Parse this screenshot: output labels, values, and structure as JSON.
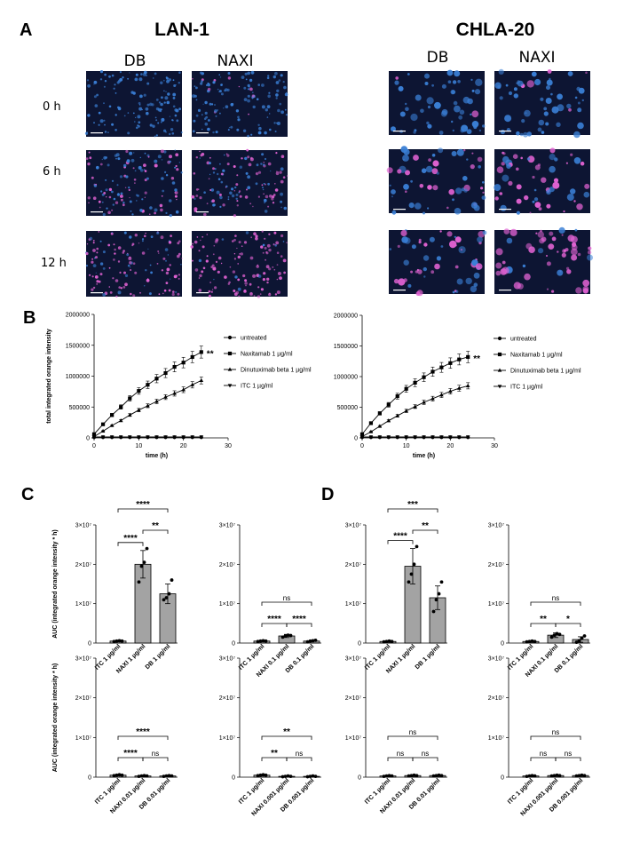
{
  "panels": {
    "A": "A",
    "B": "B",
    "C": "C",
    "D": "D"
  },
  "cell_lines": [
    "LAN-1",
    "CHLA-20"
  ],
  "conditions": [
    "DB",
    "NAXI"
  ],
  "timepoints": [
    "0 h",
    "6 h",
    "12 h"
  ],
  "colors": {
    "bar_fill": "#a3a3a3",
    "line": "#000000",
    "micro_bg": "#0d1533",
    "cell_blue": "#3a7fd6",
    "cell_pink": "#e062d2"
  },
  "chart_data": [
    {
      "id": "B-LAN-1",
      "type": "line",
      "xlabel": "time (h)",
      "ylabel": "total integrated orange intensity",
      "xlim": [
        0,
        30
      ],
      "ylim": [
        0,
        2000000
      ],
      "xticks": [
        "0",
        "10",
        "20",
        "30"
      ],
      "yticks": [
        "0",
        "500000",
        "1000000",
        "1500000",
        "2000000"
      ],
      "annotation": "**",
      "series": [
        {
          "name": "untreated",
          "marker": "circle",
          "x": [
            0,
            2,
            4,
            6,
            8,
            10,
            12,
            14,
            16,
            18,
            20,
            22,
            24
          ],
          "y": [
            10000,
            10000,
            10000,
            10000,
            10000,
            10000,
            10000,
            10000,
            10000,
            10000,
            10000,
            10000,
            10000
          ]
        },
        {
          "name": "Naxitamab 1 µg/ml",
          "marker": "square",
          "x": [
            0,
            2,
            4,
            6,
            8,
            10,
            12,
            14,
            16,
            18,
            20,
            22,
            24
          ],
          "y": [
            60000,
            220000,
            370000,
            500000,
            640000,
            760000,
            860000,
            960000,
            1050000,
            1150000,
            1220000,
            1310000,
            1390000
          ]
        },
        {
          "name": "Dinutuximab beta 1 µg/ml",
          "marker": "triangle-up",
          "x": [
            0,
            2,
            4,
            6,
            8,
            10,
            12,
            14,
            16,
            18,
            20,
            22,
            24
          ],
          "y": [
            20000,
            110000,
            200000,
            280000,
            370000,
            450000,
            520000,
            590000,
            660000,
            720000,
            780000,
            860000,
            930000
          ]
        },
        {
          "name": "ITC 1 µg/ml",
          "marker": "triangle-down",
          "x": [
            0,
            2,
            4,
            6,
            8,
            10,
            12,
            14,
            16,
            18,
            20,
            22,
            24
          ],
          "y": [
            15000,
            15000,
            15000,
            15000,
            15000,
            15000,
            15000,
            15000,
            15000,
            15000,
            15000,
            15000,
            15000
          ]
        }
      ]
    },
    {
      "id": "B-CHLA-20",
      "type": "line",
      "xlabel": "time (h)",
      "ylabel": "",
      "xlim": [
        0,
        30
      ],
      "ylim": [
        0,
        2000000
      ],
      "xticks": [
        "0",
        "10",
        "20",
        "30"
      ],
      "yticks": [
        "0",
        "500000",
        "1000000",
        "1500000",
        "2000000"
      ],
      "annotation": "**",
      "series": [
        {
          "name": "untreated",
          "marker": "circle",
          "x": [
            0,
            2,
            4,
            6,
            8,
            10,
            12,
            14,
            16,
            18,
            20,
            22,
            24
          ],
          "y": [
            10000,
            10000,
            10000,
            10000,
            10000,
            10000,
            10000,
            10000,
            10000,
            10000,
            10000,
            10000,
            10000
          ]
        },
        {
          "name": "Naxitamab 1 µg/ml",
          "marker": "square",
          "x": [
            0,
            2,
            4,
            6,
            8,
            10,
            12,
            14,
            16,
            18,
            20,
            22,
            24
          ],
          "y": [
            60000,
            240000,
            400000,
            540000,
            680000,
            800000,
            900000,
            990000,
            1080000,
            1150000,
            1220000,
            1280000,
            1320000
          ]
        },
        {
          "name": "Dinutuximab beta 1 µg/ml",
          "marker": "triangle-up",
          "x": [
            0,
            2,
            4,
            6,
            8,
            10,
            12,
            14,
            16,
            18,
            20,
            22,
            24
          ],
          "y": [
            20000,
            100000,
            190000,
            280000,
            360000,
            440000,
            510000,
            580000,
            640000,
            700000,
            760000,
            810000,
            850000
          ]
        },
        {
          "name": "ITC 1 µg/ml",
          "marker": "triangle-down",
          "x": [
            0,
            2,
            4,
            6,
            8,
            10,
            12,
            14,
            16,
            18,
            20,
            22,
            24
          ],
          "y": [
            15000,
            15000,
            15000,
            15000,
            15000,
            15000,
            15000,
            15000,
            15000,
            15000,
            15000,
            15000,
            15000
          ]
        }
      ]
    },
    {
      "id": "C1",
      "type": "bar",
      "ylabel": "AUC (integrated orange intensity * h)",
      "yticks": [
        "3×10⁷",
        "2×10⁷",
        "1×10⁷",
        "0"
      ],
      "ylim": [
        0,
        30000000
      ],
      "categories": [
        "ITC 1 µg/ml",
        "NAXI 1 µg/ml",
        "DB 1 µg/ml"
      ],
      "values": [
        500000,
        20000000,
        12500000
      ],
      "errors": [
        200000,
        3500000,
        2500000
      ],
      "points": [
        [
          400000,
          500000,
          600000,
          500000
        ],
        [
          15500000,
          19500000,
          20500000,
          24000000
        ],
        [
          11000000,
          11500000,
          12500000,
          16000000
        ]
      ],
      "brackets": [
        {
          "from": 0,
          "to": 1,
          "label": "****"
        },
        {
          "from": 1,
          "to": 2,
          "label": "**"
        },
        {
          "from": 0,
          "to": 2,
          "label": "****"
        }
      ]
    },
    {
      "id": "C2",
      "type": "bar",
      "ylabel": "",
      "yticks": [
        "3×10⁷",
        "2×10⁷",
        "1×10⁷",
        "0"
      ],
      "ylim": [
        0,
        30000000
      ],
      "categories": [
        "ITC 1 µg/ml",
        "NAXI 0.1 µg/ml",
        "DB 0.1 µg/ml"
      ],
      "values": [
        500000,
        1800000,
        500000
      ],
      "errors": [
        200000,
        400000,
        200000
      ],
      "points": [
        [
          400000,
          500000,
          600000,
          500000
        ],
        [
          1500000,
          1800000,
          2000000,
          1900000
        ],
        [
          300000,
          500000,
          600000,
          700000
        ]
      ],
      "brackets": [
        {
          "from": 0,
          "to": 1,
          "label": "****"
        },
        {
          "from": 1,
          "to": 2,
          "label": "****"
        },
        {
          "from": 0,
          "to": 2,
          "label": "ns"
        }
      ]
    },
    {
      "id": "C3",
      "type": "bar",
      "ylabel": "AUC (integrated orange intensity * h)",
      "yticks": [
        "3×10⁷",
        "2×10⁷",
        "1×10⁷",
        "0"
      ],
      "ylim": [
        0,
        30000000
      ],
      "categories": [
        "ITC 1 µg/ml",
        "NAXI 0.01 µg/ml",
        "DB 0.01 µg/ml"
      ],
      "values": [
        500000,
        300000,
        300000
      ],
      "errors": [
        200000,
        150000,
        150000
      ],
      "points": [
        [
          400000,
          500000,
          600000,
          500000
        ],
        [
          200000,
          300000,
          400000,
          300000
        ],
        [
          200000,
          300000,
          400000,
          300000
        ]
      ],
      "brackets": [
        {
          "from": 0,
          "to": 1,
          "label": "****"
        },
        {
          "from": 1,
          "to": 2,
          "label": "ns"
        },
        {
          "from": 0,
          "to": 2,
          "label": "****"
        }
      ]
    },
    {
      "id": "C4",
      "type": "bar",
      "ylabel": "",
      "yticks": [
        "3×10⁷",
        "2×10⁷",
        "1×10⁷",
        "0"
      ],
      "ylim": [
        0,
        30000000
      ],
      "categories": [
        "ITC 1 µg/ml",
        "NAXI 0.001 µg/ml",
        "DB 0.001 µg/ml"
      ],
      "values": [
        500000,
        200000,
        200000
      ],
      "errors": [
        200000,
        100000,
        100000
      ],
      "points": [
        [
          400000,
          500000,
          600000,
          500000
        ],
        [
          100000,
          200000,
          300000,
          200000
        ],
        [
          100000,
          200000,
          300000,
          200000
        ]
      ],
      "brackets": [
        {
          "from": 0,
          "to": 1,
          "label": "**"
        },
        {
          "from": 1,
          "to": 2,
          "label": "ns"
        },
        {
          "from": 0,
          "to": 2,
          "label": "**"
        }
      ]
    },
    {
      "id": "D1",
      "type": "bar",
      "ylabel": "",
      "yticks": [
        "3×10⁷",
        "2×10⁷",
        "1×10⁷",
        "0"
      ],
      "ylim": [
        0,
        30000000
      ],
      "categories": [
        "ITC 1 µg/ml",
        "NAXI 1 µg/ml",
        "DB 1 µg/ml"
      ],
      "values": [
        400000,
        19500000,
        11500000
      ],
      "errors": [
        150000,
        4500000,
        3000000
      ],
      "points": [
        [
          300000,
          400000,
          500000,
          400000
        ],
        [
          15500000,
          17500000,
          20000000,
          24500000
        ],
        [
          8000000,
          11000000,
          12500000,
          15500000
        ]
      ],
      "brackets": [
        {
          "from": 0,
          "to": 1,
          "label": "****"
        },
        {
          "from": 1,
          "to": 2,
          "label": "**"
        },
        {
          "from": 0,
          "to": 2,
          "label": "***"
        }
      ]
    },
    {
      "id": "D2",
      "type": "bar",
      "ylabel": "",
      "yticks": [
        "3×10⁷",
        "2×10⁷",
        "1×10⁷",
        "0"
      ],
      "ylim": [
        0,
        30000000
      ],
      "categories": [
        "ITC 1 µg/ml",
        "NAXI 0.1 µg/ml",
        "DB 0.1 µg/ml"
      ],
      "values": [
        400000,
        2000000,
        900000
      ],
      "errors": [
        150000,
        600000,
        700000
      ],
      "points": [
        [
          300000,
          400000,
          500000,
          400000
        ],
        [
          1500000,
          2000000,
          2400000,
          2200000
        ],
        [
          200000,
          600000,
          1200000,
          1800000
        ]
      ],
      "brackets": [
        {
          "from": 0,
          "to": 1,
          "label": "**"
        },
        {
          "from": 1,
          "to": 2,
          "label": "*"
        },
        {
          "from": 0,
          "to": 2,
          "label": "ns"
        }
      ]
    },
    {
      "id": "D3",
      "type": "bar",
      "ylabel": "",
      "yticks": [
        "3×10⁷",
        "2×10⁷",
        "1×10⁷",
        "0"
      ],
      "ylim": [
        0,
        30000000
      ],
      "categories": [
        "ITC 1 µg/ml",
        "NAXI 0.01 µg/ml",
        "DB 0.01 µg/ml"
      ],
      "values": [
        300000,
        400000,
        400000
      ],
      "errors": [
        100000,
        150000,
        150000
      ],
      "points": [
        [
          200000,
          300000,
          400000,
          300000
        ],
        [
          300000,
          400000,
          500000,
          400000
        ],
        [
          300000,
          400000,
          500000,
          400000
        ]
      ],
      "brackets": [
        {
          "from": 0,
          "to": 1,
          "label": "ns"
        },
        {
          "from": 1,
          "to": 2,
          "label": "ns"
        },
        {
          "from": 0,
          "to": 2,
          "label": "ns"
        }
      ]
    },
    {
      "id": "D4",
      "type": "bar",
      "ylabel": "",
      "yticks": [
        "3×10⁷",
        "2×10⁷",
        "1×10⁷",
        "0"
      ],
      "ylim": [
        0,
        30000000
      ],
      "categories": [
        "ITC 1 µg/ml",
        "NAXI 0.001 µg/ml",
        "DB 0.001 µg/ml"
      ],
      "values": [
        300000,
        400000,
        400000
      ],
      "errors": [
        100000,
        150000,
        150000
      ],
      "points": [
        [
          200000,
          300000,
          400000,
          300000
        ],
        [
          300000,
          400000,
          500000,
          400000
        ],
        [
          300000,
          400000,
          500000,
          400000
        ]
      ],
      "brackets": [
        {
          "from": 0,
          "to": 1,
          "label": "ns"
        },
        {
          "from": 1,
          "to": 2,
          "label": "ns"
        },
        {
          "from": 0,
          "to": 2,
          "label": "ns"
        }
      ]
    }
  ]
}
